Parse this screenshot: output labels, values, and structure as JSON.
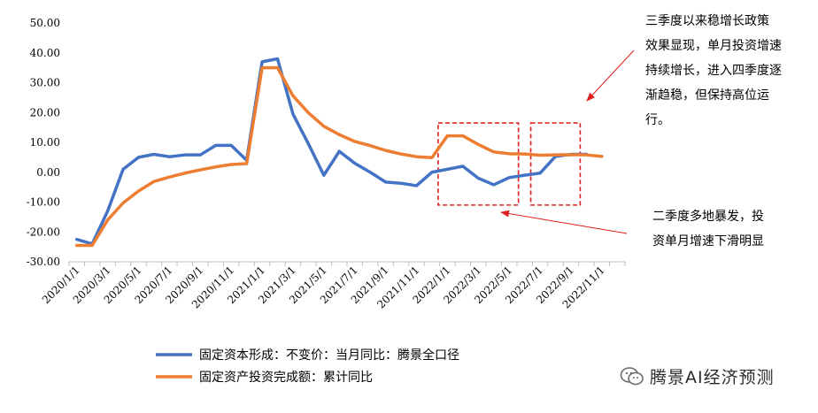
{
  "chart_data": {
    "type": "line",
    "x": [
      "2020/1/1",
      "2020/2/1",
      "2020/3/1",
      "2020/4/1",
      "2020/5/1",
      "2020/6/1",
      "2020/7/1",
      "2020/8/1",
      "2020/9/1",
      "2020/10/1",
      "2020/11/1",
      "2020/12/1",
      "2021/1/1",
      "2021/2/1",
      "2021/3/1",
      "2021/4/1",
      "2021/5/1",
      "2021/6/1",
      "2021/7/1",
      "2021/8/1",
      "2021/9/1",
      "2021/10/1",
      "2021/11/1",
      "2021/12/1",
      "2022/1/1",
      "2022/2/1",
      "2022/3/1",
      "2022/4/1",
      "2022/5/1",
      "2022/6/1",
      "2022/7/1",
      "2022/8/1",
      "2022/9/1",
      "2022/10/1",
      "2022/11/1",
      "2022/12/1"
    ],
    "xticklabels": [
      "2020/1/1",
      "2020/3/1",
      "2020/5/1",
      "2020/7/1",
      "2020/9/1",
      "2020/11/1",
      "2021/1/1",
      "2021/3/1",
      "2021/5/1",
      "2021/7/1",
      "2021/9/1",
      "2021/11/1",
      "2022/1/1",
      "2022/3/1",
      "2022/5/1",
      "2022/7/1",
      "2022/9/1",
      "2022/11/1"
    ],
    "yticklabels": [
      "50.00",
      "40.00",
      "30.00",
      "20.00",
      "10.00",
      "0.00",
      "-10.00",
      "-20.00",
      "-30.00"
    ],
    "ylim": [
      -30,
      50
    ],
    "grid": false,
    "legend_position": "bottom",
    "series": [
      {
        "name": "固定资本形成：不变价：当月同比：腾景全口径",
        "color": "#4472C4",
        "values": [
          -22.5,
          -24,
          -13,
          1,
          5,
          6,
          5.2,
          5.8,
          5.8,
          9,
          9,
          4,
          37,
          38,
          19.5,
          9.5,
          -1,
          7,
          3,
          0,
          -3.3,
          -3.7,
          -4.5,
          0,
          1,
          2,
          -2,
          -4.2,
          -1.8,
          -1,
          -0.3,
          5.3,
          6,
          6,
          null,
          null
        ]
      },
      {
        "name": "固定资产投资完成额：累计同比",
        "color": "#ED7D31",
        "values": [
          -24.5,
          -24.5,
          -16,
          -10.3,
          -6.3,
          -3.1,
          -1.6,
          -0.3,
          0.8,
          1.8,
          2.6,
          2.9,
          35,
          35,
          25.6,
          19.9,
          15.4,
          12.6,
          10.3,
          8.9,
          7.3,
          6.1,
          5.2,
          4.9,
          12.2,
          12.2,
          9.3,
          6.8,
          6.2,
          6.1,
          5.7,
          5.8,
          5.9,
          5.8,
          5.3,
          null
        ]
      }
    ],
    "highlight_boxes": [
      {
        "x_from": "2022/1/1",
        "x_to": "2022/5/1",
        "y_from": -11,
        "y_to": 16.5
      },
      {
        "x_from": "2022/7/1",
        "x_to": "2022/9/1",
        "y_from": -11,
        "y_to": 16.5
      }
    ]
  },
  "annotations": {
    "q3_lines": [
      "三季度以来稳增长政策",
      "效果显现，单月投资增速",
      "持续增长，进入四季度逐",
      "渐趋稳，但保持高位运",
      "行。"
    ],
    "q2_lines": [
      "二季度多地暴发，投",
      "资单月增速下滑明显"
    ]
  },
  "watermark": {
    "text": "腾景AI经济预测",
    "icon": "wechat-icon"
  },
  "colors": {
    "annotation_arrow": "#E02020",
    "highlight_box": "#E02020",
    "axis": "#BFBFBF"
  }
}
